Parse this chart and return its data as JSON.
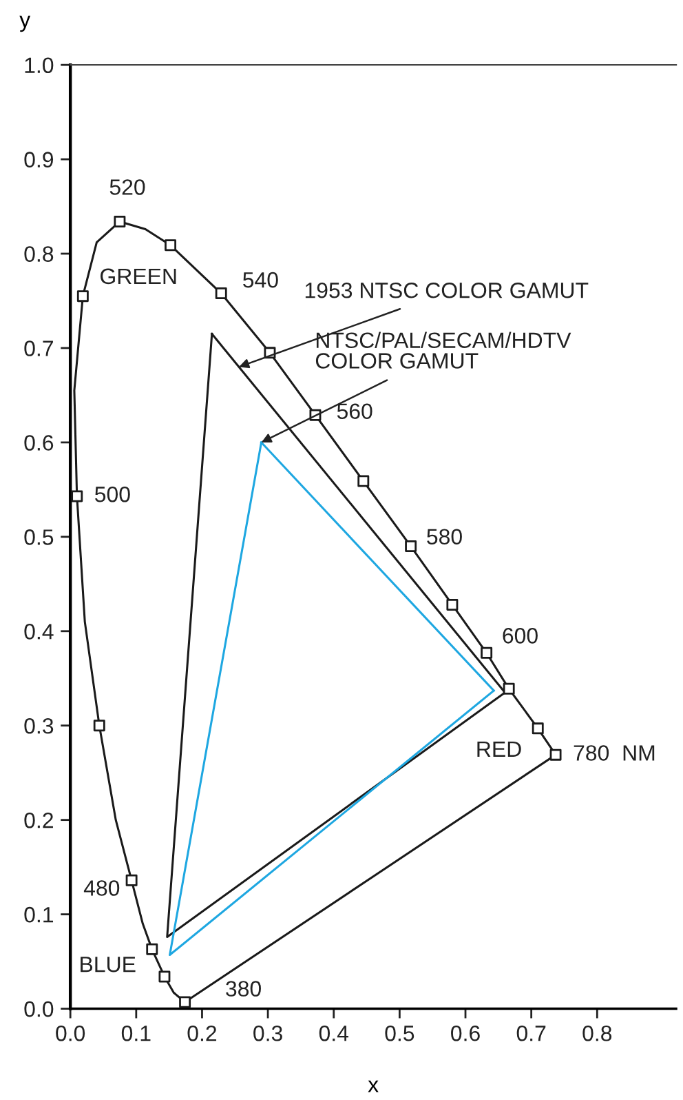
{
  "chart_data": {
    "type": "line",
    "xlabel": "x",
    "ylabel": "y",
    "xlim": [
      0,
      0.92
    ],
    "ylim": [
      0,
      1.0
    ],
    "xticks": [
      {
        "value": 0,
        "label": "0.0"
      },
      0.1,
      0.2,
      0.3,
      0.4,
      0.5,
      0.6,
      0.7,
      0.8
    ],
    "yticks": [
      {
        "value": 0,
        "label": "0.0"
      },
      0.1,
      0.2,
      0.3,
      0.4,
      0.5,
      0.6,
      0.7,
      0.8,
      0.9,
      {
        "value": 1,
        "label": "1.0"
      }
    ],
    "grid": false,
    "series": [
      {
        "color": "#1a1a1a",
        "marker": "none",
        "line_style": "solid",
        "x": [
          0.174,
          0.157,
          0.143,
          0.124,
          0.11,
          0.093,
          0.069,
          0.044,
          0.022,
          0.01,
          0.006,
          0.019,
          0.04,
          0.075,
          0.114,
          0.152,
          0.229,
          0.303,
          0.372,
          0.445,
          0.517,
          0.58,
          0.632,
          0.666,
          0.71,
          0.737
        ],
        "values": [
          0.007,
          0.017,
          0.034,
          0.063,
          0.09,
          0.136,
          0.2,
          0.3,
          0.41,
          0.543,
          0.655,
          0.755,
          0.812,
          0.834,
          0.826,
          0.809,
          0.758,
          0.695,
          0.629,
          0.559,
          0.49,
          0.428,
          0.377,
          0.339,
          0.297,
          0.269
        ]
      },
      {
        "type": "line",
        "color": "#1a1a1a",
        "marker": "none",
        "line_style": "solid",
        "x": [
          0.737,
          0.174
        ],
        "values": [
          0.269,
          0.007
        ]
      },
      {
        "type": "scatter",
        "color": "#1a1a1a",
        "marker": "square",
        "x": [
          0.174,
          0.143,
          0.124,
          0.093,
          0.044,
          0.01,
          0.019,
          0.075,
          0.152,
          0.229,
          0.303,
          0.372,
          0.445,
          0.517,
          0.58,
          0.632,
          0.666,
          0.71,
          0.737
        ],
        "values": [
          0.007,
          0.034,
          0.063,
          0.136,
          0.3,
          0.543,
          0.755,
          0.834,
          0.809,
          0.758,
          0.695,
          0.629,
          0.559,
          0.49,
          0.428,
          0.377,
          0.339,
          0.297,
          0.269
        ]
      },
      {
        "color": "#1a1a1a",
        "marker": "none",
        "line_style": "solid",
        "x": [
          0.215,
          0.147,
          0.66
        ],
        "values": [
          0.715,
          0.076,
          0.335
        ]
      },
      {
        "type": "line",
        "color": "#1a1a1a",
        "marker": "none",
        "line_style": "solid",
        "x": [
          0.66,
          0.215
        ],
        "values": [
          0.335,
          0.715
        ]
      },
      {
        "color": "#1ea7e1",
        "marker": "none",
        "line_style": "solid",
        "x": [
          0.29,
          0.151,
          0.643
        ],
        "values": [
          0.6,
          0.057,
          0.337
        ]
      },
      {
        "type": "line",
        "color": "#1ea7e1",
        "marker": "none",
        "line_style": "solid",
        "x": [
          0.643,
          0.29
        ],
        "values": [
          0.337,
          0.6
        ]
      }
    ],
    "annotations": [
      {
        "text": "520",
        "x": 0.075,
        "y": 0.834
      },
      "GREEN",
      {
        "text": "540",
        "x": 0.229,
        "y": 0.758
      },
      {
        "text": "560",
        "x": 0.372,
        "y": 0.629
      },
      {
        "text": "580",
        "x": 0.517,
        "y": 0.49
      },
      {
        "text": "600",
        "x": 0.632,
        "y": 0.377
      },
      "RED",
      {
        "text": "780  NM",
        "x": 0.737,
        "y": 0.269
      },
      {
        "text": "500",
        "x": 0.01,
        "y": 0.543
      },
      {
        "text": "480",
        "x": 0.093,
        "y": 0.136
      },
      "BLUE",
      {
        "text": "380",
        "x": 0.174,
        "y": 0.007
      },
      {
        "text": "1953 NTSC COLOR GAMUT",
        "x": 0.256,
        "y": 0.68
      },
      {
        "text": "NTSC/PAL/SECAM/HDTV\nCOLOR GAMUT",
        "x": 0.29,
        "y": 0.6
      }
    ]
  }
}
